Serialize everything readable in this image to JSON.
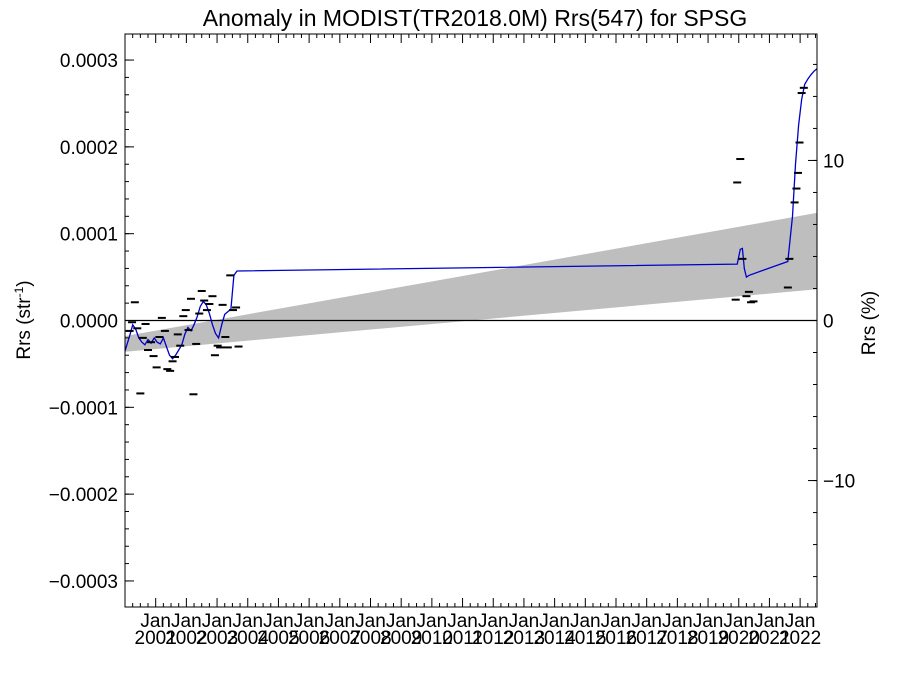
{
  "chart_data": {
    "type": "scatter",
    "title": "Anomaly in MODIST(TR2018.0M) Rrs(547) for SPSG",
    "ylabel": "Rrs (str",
    "ylabel_sup": "-1",
    "ylabel_close": ")",
    "y2label": "Rrs (%)",
    "ylim": [
      -0.00033,
      0.00033
    ],
    "y2lim": [
      -17.9,
      17.9
    ],
    "xlim": [
      2000.0,
      2022.55
    ],
    "y_ticks": [
      {
        "v": 0.0003,
        "label": "0.0003"
      },
      {
        "v": 0.0002,
        "label": "0.0002"
      },
      {
        "v": 0.0001,
        "label": "0.0001"
      },
      {
        "v": 0.0,
        "label": "0.0000"
      },
      {
        "v": -0.0001,
        "label": "−0.0001"
      },
      {
        "v": -0.0002,
        "label": "−0.0002"
      },
      {
        "v": -0.0003,
        "label": "−0.0003"
      }
    ],
    "y2_ticks": [
      {
        "v": 10,
        "label": "10"
      },
      {
        "v": 0,
        "label": "0"
      },
      {
        "v": -10,
        "label": "−10"
      }
    ],
    "x_ticks": [
      {
        "x": 2001,
        "month": "Jan",
        "year": "2001"
      },
      {
        "x": 2002,
        "month": "Jan",
        "year": "2002"
      },
      {
        "x": 2003,
        "month": "Jan",
        "year": "2003"
      },
      {
        "x": 2004,
        "month": "Jan",
        "year": "2004"
      },
      {
        "x": 2005,
        "month": "Jan",
        "year": "2005"
      },
      {
        "x": 2006,
        "month": "Jan",
        "year": "2006"
      },
      {
        "x": 2007,
        "month": "Jan",
        "year": "2007"
      },
      {
        "x": 2008,
        "month": "Jan",
        "year": "2008"
      },
      {
        "x": 2009,
        "month": "Jan",
        "year": "2009"
      },
      {
        "x": 2010,
        "month": "Jan",
        "year": "2010"
      },
      {
        "x": 2011,
        "month": "Jan",
        "year": "2011"
      },
      {
        "x": 2012,
        "month": "Jan",
        "year": "2012"
      },
      {
        "x": 2013,
        "month": "Jan",
        "year": "2013"
      },
      {
        "x": 2014,
        "month": "Jan",
        "year": "2014"
      },
      {
        "x": 2015,
        "month": "Jan",
        "year": "2015"
      },
      {
        "x": 2016,
        "month": "Jan",
        "year": "2016"
      },
      {
        "x": 2017,
        "month": "Jan",
        "year": "2017"
      },
      {
        "x": 2018,
        "month": "Jan",
        "year": "2018"
      },
      {
        "x": 2019,
        "month": "Jan",
        "year": "2019"
      },
      {
        "x": 2020,
        "month": "Jan",
        "year": "2020"
      },
      {
        "x": 2021,
        "month": "Jan",
        "year": "2021"
      },
      {
        "x": 2022,
        "month": "Jan",
        "year": "2022"
      }
    ],
    "confidence_band": {
      "x": [
        2000.0,
        2022.55
      ],
      "lower": [
        -3.6e-05,
        3.6e-05
      ],
      "upper": [
        -1.8e-05,
        0.000124
      ],
      "color": "#bebebe"
    },
    "zero_line": 0,
    "colors": {
      "smooth_line": "#0000cc",
      "points": "#000000",
      "band": "#bebebe"
    },
    "points": [
      {
        "x": 2000.15,
        "y": -1.2e-05
      },
      {
        "x": 2000.23,
        "y": -2e-06
      },
      {
        "x": 2000.32,
        "y": 2.1e-05
      },
      {
        "x": 2000.4,
        "y": -9e-06
      },
      {
        "x": 2000.5,
        "y": -8.4e-05
      },
      {
        "x": 2000.58,
        "y": -2e-05
      },
      {
        "x": 2000.67,
        "y": -4e-06
      },
      {
        "x": 2000.75,
        "y": -3.4e-05
      },
      {
        "x": 2000.85,
        "y": -2.5e-05
      },
      {
        "x": 2000.93,
        "y": -4.1e-05
      },
      {
        "x": 2001.03,
        "y": -5.4e-05
      },
      {
        "x": 2001.12,
        "y": -1.9e-05
      },
      {
        "x": 2001.2,
        "y": 3e-06
      },
      {
        "x": 2001.3,
        "y": -1.2e-05
      },
      {
        "x": 2001.38,
        "y": -5.6e-05
      },
      {
        "x": 2001.47,
        "y": -5.8e-05
      },
      {
        "x": 2001.55,
        "y": -4.7e-05
      },
      {
        "x": 2001.63,
        "y": -4.2e-05
      },
      {
        "x": 2001.72,
        "y": -1.6e-05
      },
      {
        "x": 2001.8,
        "y": -2.9e-05
      },
      {
        "x": 2001.9,
        "y": 5e-06
      },
      {
        "x": 2001.98,
        "y": 1.2e-05
      },
      {
        "x": 2002.07,
        "y": -1.1e-05
      },
      {
        "x": 2002.15,
        "y": 2.5e-05
      },
      {
        "x": 2002.23,
        "y": -8.5e-05
      },
      {
        "x": 2002.32,
        "y": -2.7e-05
      },
      {
        "x": 2002.42,
        "y": 8e-06
      },
      {
        "x": 2002.5,
        "y": 3.4e-05
      },
      {
        "x": 2002.58,
        "y": 2.3e-05
      },
      {
        "x": 2002.67,
        "y": 1.2e-05
      },
      {
        "x": 2002.75,
        "y": 1.9e-05
      },
      {
        "x": 2002.85,
        "y": 2.8e-05
      },
      {
        "x": 2002.93,
        "y": -4e-05
      },
      {
        "x": 2003.02,
        "y": -2.9e-05
      },
      {
        "x": 2003.1,
        "y": -3.1e-05
      },
      {
        "x": 2003.18,
        "y": 1.8e-05
      },
      {
        "x": 2003.27,
        "y": -1.9e-05
      },
      {
        "x": 2003.35,
        "y": -3.1e-05
      },
      {
        "x": 2003.43,
        "y": 5.2e-05
      },
      {
        "x": 2003.52,
        "y": 1.2e-05
      },
      {
        "x": 2003.62,
        "y": 1.5e-05
      },
      {
        "x": 2003.7,
        "y": -3e-05
      },
      {
        "x": 2019.9,
        "y": 2.4e-05
      },
      {
        "x": 2019.95,
        "y": 0.000159
      },
      {
        "x": 2020.05,
        "y": 0.000186
      },
      {
        "x": 2020.12,
        "y": 7.1e-05
      },
      {
        "x": 2020.25,
        "y": 2.8e-05
      },
      {
        "x": 2020.33,
        "y": 3.3e-05
      },
      {
        "x": 2020.4,
        "y": 2.1e-05
      },
      {
        "x": 2020.48,
        "y": 2.2e-05
      },
      {
        "x": 2021.6,
        "y": 3.8e-05
      },
      {
        "x": 2021.65,
        "y": 7.1e-05
      },
      {
        "x": 2021.82,
        "y": 0.000136
      },
      {
        "x": 2021.88,
        "y": 0.000152
      },
      {
        "x": 2021.93,
        "y": 0.00017
      },
      {
        "x": 2021.98,
        "y": 0.000205
      },
      {
        "x": 2022.05,
        "y": 0.000262
      },
      {
        "x": 2022.12,
        "y": 0.000268
      }
    ],
    "smooth_series": {
      "x": [
        2000.0,
        2000.15,
        2000.25,
        2000.35,
        2000.45,
        2000.55,
        2000.65,
        2000.75,
        2000.85,
        2000.95,
        2001.05,
        2001.15,
        2001.25,
        2001.35,
        2001.45,
        2001.55,
        2001.65,
        2001.75,
        2001.85,
        2001.95,
        2002.05,
        2002.15,
        2002.25,
        2002.35,
        2002.45,
        2002.55,
        2002.65,
        2002.75,
        2002.85,
        2002.95,
        2003.05,
        2003.15,
        2003.25,
        2003.35,
        2003.45,
        2003.55,
        2003.65,
        2019.95,
        2020.05,
        2020.12,
        2020.18,
        2020.25,
        2020.33,
        2021.6,
        2021.75,
        2021.85,
        2021.95,
        2022.05,
        2022.15,
        2022.25,
        2022.35,
        2022.45,
        2022.55
      ],
      "y": [
        -3.5e-05,
        -1.8e-05,
        -5e-06,
        -1e-05,
        -2e-05,
        -2.5e-05,
        -2.8e-05,
        -2.2e-05,
        -2.6e-05,
        -2e-05,
        -2.5e-05,
        -2.7e-05,
        -2e-05,
        -3e-05,
        -4e-05,
        -4.4e-05,
        -4e-05,
        -3.4e-05,
        -2.8e-05,
        -1.6e-05,
        -8e-06,
        -1.2e-05,
        -5e-06,
        4e-06,
        1.6e-05,
        2.2e-05,
        1.8e-05,
        8e-06,
        -5e-06,
        -1.5e-05,
        -2e-05,
        -5e-06,
        7e-06,
        1e-05,
        1.3e-05,
        5.2e-05,
        5.7e-05,
        6.5e-05,
        8.2e-05,
        8.3e-05,
        6e-05,
        5e-05,
        5.2e-05,
        6.8e-05,
        0.00012,
        0.00018,
        0.000225,
        0.000255,
        0.000272,
        0.000278,
        0.000283,
        0.000287,
        0.00029
      ]
    }
  }
}
